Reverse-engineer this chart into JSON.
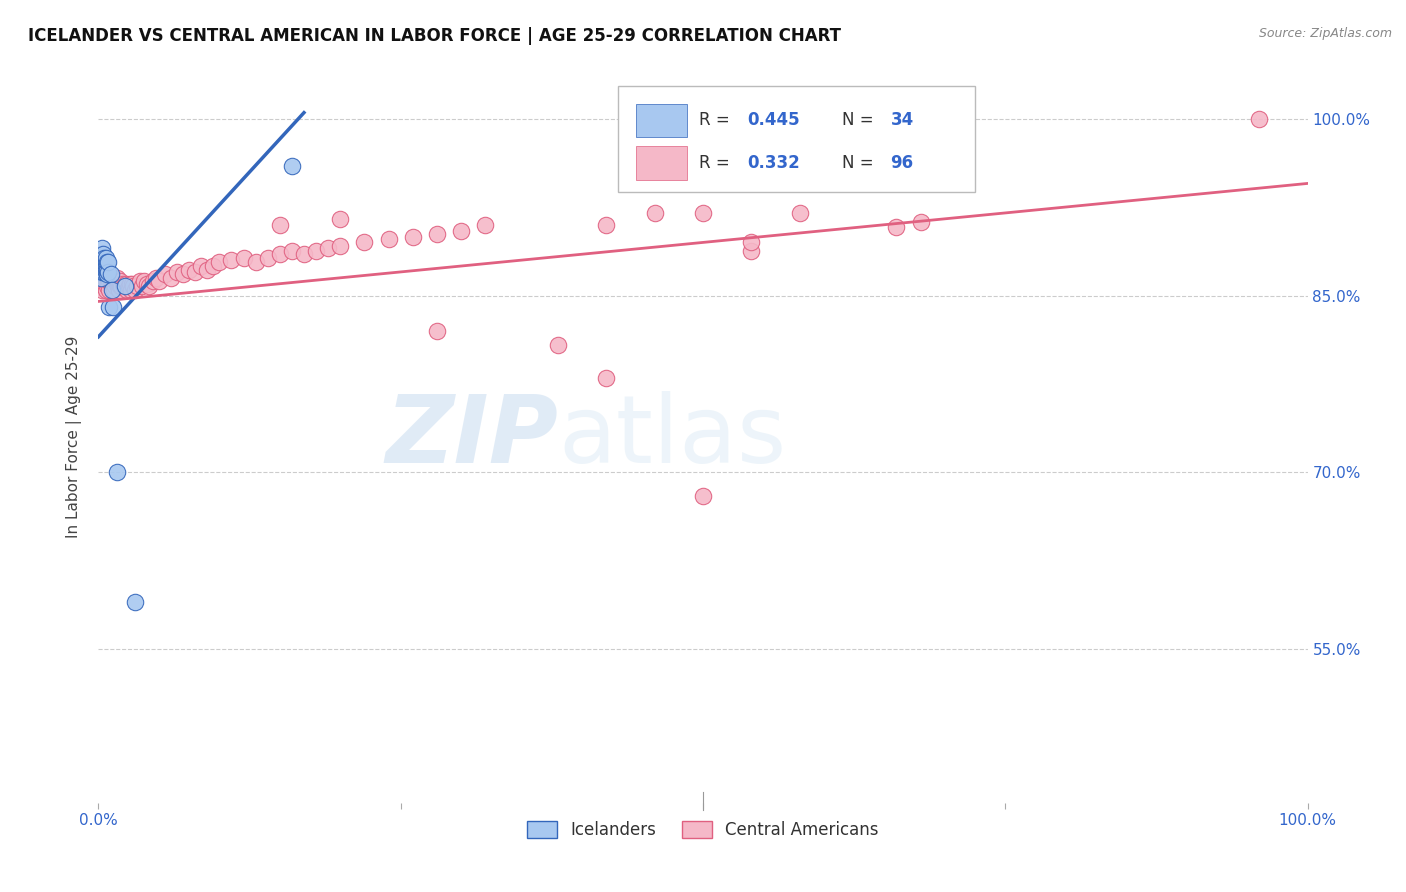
{
  "title": "ICELANDER VS CENTRAL AMERICAN IN LABOR FORCE | AGE 25-29 CORRELATION CHART",
  "source": "Source: ZipAtlas.com",
  "ylabel": "In Labor Force | Age 25-29",
  "xlim": [
    0,
    1.0
  ],
  "ylim": [
    0.42,
    1.04
  ],
  "yticks": [
    0.55,
    0.7,
    0.85,
    1.0
  ],
  "ytick_labels": [
    "55.0%",
    "70.0%",
    "85.0%",
    "100.0%"
  ],
  "blue_color": "#A8C8F0",
  "pink_color": "#F5B8C8",
  "blue_line_color": "#3366BB",
  "pink_line_color": "#E06080",
  "watermark_zip": "ZIP",
  "watermark_atlas": "atlas",
  "icelanders_x": [
    0.001,
    0.001,
    0.002,
    0.002,
    0.002,
    0.003,
    0.003,
    0.003,
    0.003,
    0.003,
    0.004,
    0.004,
    0.004,
    0.005,
    0.005,
    0.005,
    0.005,
    0.006,
    0.006,
    0.006,
    0.006,
    0.007,
    0.007,
    0.007,
    0.008,
    0.008,
    0.009,
    0.01,
    0.011,
    0.012,
    0.015,
    0.022,
    0.03,
    0.16
  ],
  "icelanders_y": [
    0.87,
    0.875,
    0.865,
    0.875,
    0.88,
    0.87,
    0.875,
    0.88,
    0.885,
    0.89,
    0.875,
    0.88,
    0.885,
    0.87,
    0.875,
    0.878,
    0.882,
    0.87,
    0.875,
    0.878,
    0.882,
    0.868,
    0.872,
    0.878,
    0.87,
    0.878,
    0.84,
    0.868,
    0.855,
    0.84,
    0.7,
    0.858,
    0.59,
    0.96
  ],
  "central_x": [
    0.001,
    0.002,
    0.002,
    0.003,
    0.003,
    0.004,
    0.004,
    0.005,
    0.005,
    0.006,
    0.006,
    0.007,
    0.007,
    0.008,
    0.008,
    0.009,
    0.009,
    0.01,
    0.01,
    0.011,
    0.011,
    0.012,
    0.012,
    0.013,
    0.013,
    0.014,
    0.014,
    0.015,
    0.015,
    0.016,
    0.017,
    0.017,
    0.018,
    0.018,
    0.019,
    0.02,
    0.021,
    0.022,
    0.023,
    0.024,
    0.025,
    0.026,
    0.027,
    0.028,
    0.029,
    0.03,
    0.032,
    0.034,
    0.036,
    0.038,
    0.04,
    0.042,
    0.045,
    0.048,
    0.05,
    0.055,
    0.06,
    0.065,
    0.07,
    0.075,
    0.08,
    0.085,
    0.09,
    0.095,
    0.1,
    0.11,
    0.12,
    0.13,
    0.14,
    0.15,
    0.16,
    0.17,
    0.18,
    0.19,
    0.2,
    0.22,
    0.24,
    0.26,
    0.28,
    0.3,
    0.15,
    0.2,
    0.28,
    0.32,
    0.38,
    0.42,
    0.46,
    0.5,
    0.54,
    0.58,
    0.42,
    0.5,
    0.54,
    0.66,
    0.68,
    0.96
  ],
  "central_y": [
    0.87,
    0.86,
    0.875,
    0.855,
    0.865,
    0.86,
    0.87,
    0.858,
    0.868,
    0.855,
    0.862,
    0.858,
    0.865,
    0.86,
    0.868,
    0.855,
    0.862,
    0.86,
    0.865,
    0.858,
    0.862,
    0.858,
    0.862,
    0.855,
    0.86,
    0.858,
    0.862,
    0.86,
    0.865,
    0.858,
    0.855,
    0.86,
    0.858,
    0.862,
    0.858,
    0.86,
    0.858,
    0.858,
    0.86,
    0.855,
    0.858,
    0.86,
    0.855,
    0.86,
    0.858,
    0.855,
    0.858,
    0.862,
    0.858,
    0.862,
    0.86,
    0.858,
    0.862,
    0.865,
    0.862,
    0.868,
    0.865,
    0.87,
    0.868,
    0.872,
    0.87,
    0.875,
    0.872,
    0.875,
    0.878,
    0.88,
    0.882,
    0.878,
    0.882,
    0.885,
    0.888,
    0.885,
    0.888,
    0.89,
    0.892,
    0.895,
    0.898,
    0.9,
    0.902,
    0.905,
    0.91,
    0.915,
    0.82,
    0.91,
    0.808,
    0.91,
    0.92,
    0.92,
    0.888,
    0.92,
    0.78,
    0.68,
    0.895,
    0.908,
    0.912,
    1.0
  ],
  "blue_trendline_x": [
    0.0,
    0.17
  ],
  "blue_trendline_y": [
    0.815,
    1.005
  ],
  "pink_trendline_x": [
    0.0,
    1.0
  ],
  "pink_trendline_y": [
    0.845,
    0.945
  ]
}
